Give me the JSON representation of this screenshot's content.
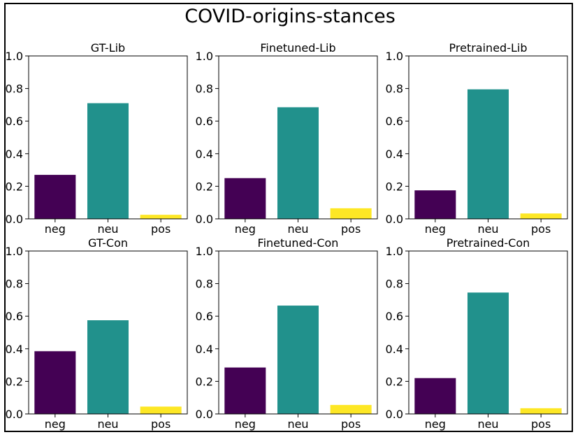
{
  "title": "COVID-origins-stances",
  "colors": {
    "neg": "#440154",
    "neu": "#21918c",
    "pos": "#fde725"
  },
  "chart_data": [
    {
      "type": "bar",
      "title": "GT-Lib",
      "categories": [
        "neg",
        "neu",
        "pos"
      ],
      "values": [
        0.27,
        0.71,
        0.025
      ],
      "ylim": [
        0,
        1.0
      ],
      "yticks": [
        "0.0",
        "0.2",
        "0.4",
        "0.6",
        "0.8",
        "1.0"
      ]
    },
    {
      "type": "bar",
      "title": "Finetuned-Lib",
      "categories": [
        "neg",
        "neu",
        "pos"
      ],
      "values": [
        0.25,
        0.685,
        0.065
      ],
      "ylim": [
        0,
        1.0
      ],
      "yticks": [
        "0.0",
        "0.2",
        "0.4",
        "0.6",
        "0.8",
        "1.0"
      ]
    },
    {
      "type": "bar",
      "title": "Pretrained-Lib",
      "categories": [
        "neg",
        "neu",
        "pos"
      ],
      "values": [
        0.175,
        0.795,
        0.033
      ],
      "ylim": [
        0,
        1.0
      ],
      "yticks": [
        "0.0",
        "0.2",
        "0.4",
        "0.6",
        "0.8",
        "1.0"
      ]
    },
    {
      "type": "bar",
      "title": "GT-Con",
      "categories": [
        "neg",
        "neu",
        "pos"
      ],
      "values": [
        0.385,
        0.575,
        0.045
      ],
      "ylim": [
        0,
        1.0
      ],
      "yticks": [
        "0.0",
        "0.2",
        "0.4",
        "0.6",
        "0.8",
        "1.0"
      ]
    },
    {
      "type": "bar",
      "title": "Finetuned-Con",
      "categories": [
        "neg",
        "neu",
        "pos"
      ],
      "values": [
        0.285,
        0.665,
        0.055
      ],
      "ylim": [
        0,
        1.0
      ],
      "yticks": [
        "0.0",
        "0.2",
        "0.4",
        "0.6",
        "0.8",
        "1.0"
      ]
    },
    {
      "type": "bar",
      "title": "Pretrained-Con",
      "categories": [
        "neg",
        "neu",
        "pos"
      ],
      "values": [
        0.22,
        0.745,
        0.035
      ],
      "ylim": [
        0,
        1.0
      ],
      "yticks": [
        "0.0",
        "0.2",
        "0.4",
        "0.6",
        "0.8",
        "1.0"
      ]
    }
  ]
}
